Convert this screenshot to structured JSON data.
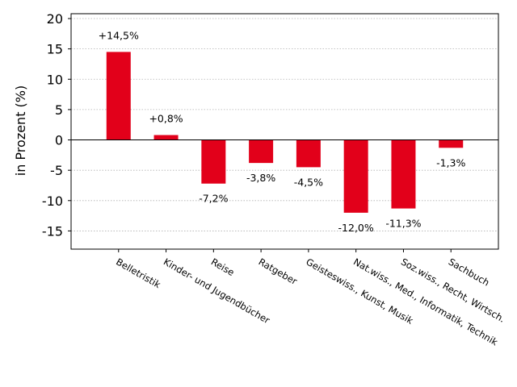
{
  "chart_data": {
    "type": "bar",
    "title": "",
    "xlabel": "",
    "ylabel": "in Prozent (%)",
    "categories": [
      "Belletristik",
      "Kinder- und Jugendbücher",
      "Reise",
      "Ratgeber",
      "Geisteswiss., Kunst, Musik",
      "Nat.wiss., Med., Informatik, Technik",
      "Soz.wiss., Recht, Wirtsch.",
      "Sachbuch"
    ],
    "values": [
      14.5,
      0.8,
      -7.2,
      -3.8,
      -4.5,
      -12.0,
      -11.3,
      -1.3
    ],
    "data_labels": [
      "+14,5%",
      "+0,8%",
      "-7,2%",
      "-3,8%",
      "-4,5%",
      "-12,0%",
      "-11,3%",
      "-1,3%"
    ],
    "ylim": [
      -18,
      20.8
    ],
    "yticks": [
      -15,
      -10,
      -5,
      0,
      5,
      10,
      15,
      20
    ],
    "ytick_labels": [
      "-15",
      "-10",
      "-5",
      "0",
      "5",
      "10",
      "15",
      "20"
    ],
    "grid": true,
    "bar_color": "#e2001a"
  }
}
